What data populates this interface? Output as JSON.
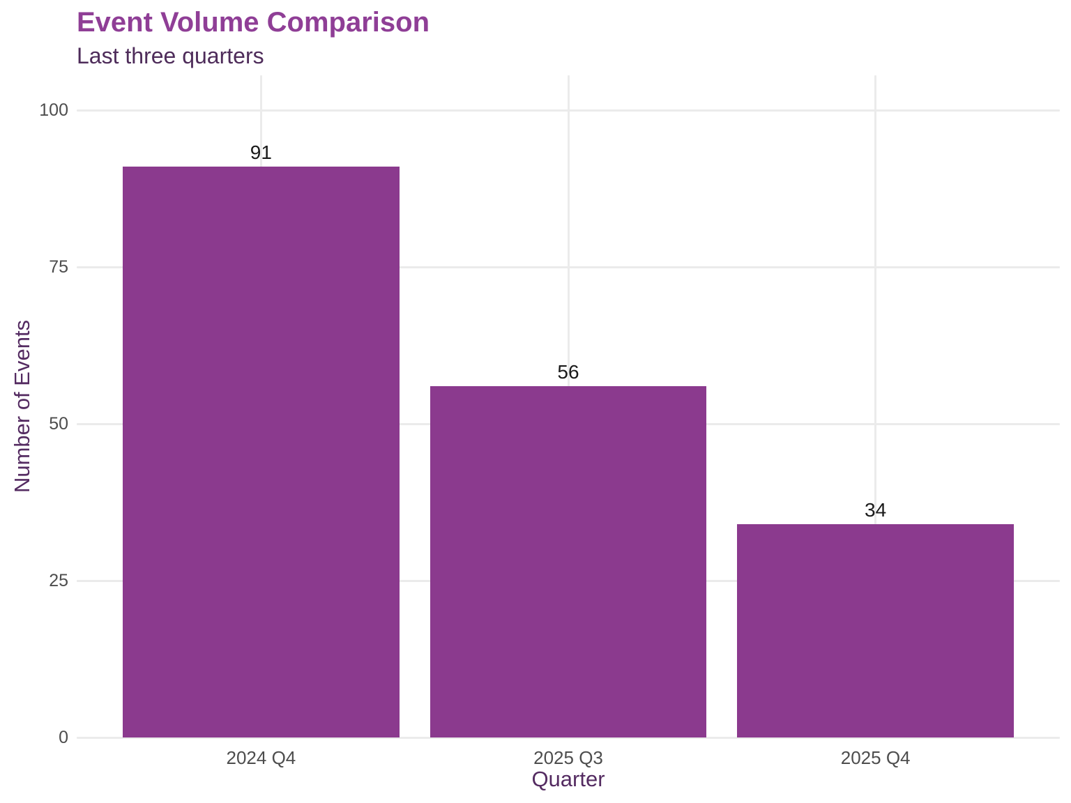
{
  "chart_data": {
    "type": "bar",
    "title": "Event Volume Comparison",
    "subtitle": "Last three quarters",
    "xlabel": "Quarter",
    "ylabel": "Number of Events",
    "categories": [
      "2024 Q4",
      "2025 Q3",
      "2025 Q4"
    ],
    "values": [
      91,
      56,
      34
    ],
    "data_labels": [
      "91",
      "56",
      "34"
    ],
    "ylim": [
      0,
      100
    ],
    "yticks": [
      0,
      25,
      50,
      75,
      100
    ],
    "grid": true,
    "legend": "none",
    "colors": {
      "bar_fill": "#8B3A8E",
      "title": "#8F3E96",
      "subtitle": "#4E2C5A",
      "axis_title": "#542B61",
      "tick_label": "#4D4D4D",
      "value_label": "#1A1A1A",
      "gridline": "#EBEBEB",
      "background": "#FFFFFF"
    }
  }
}
